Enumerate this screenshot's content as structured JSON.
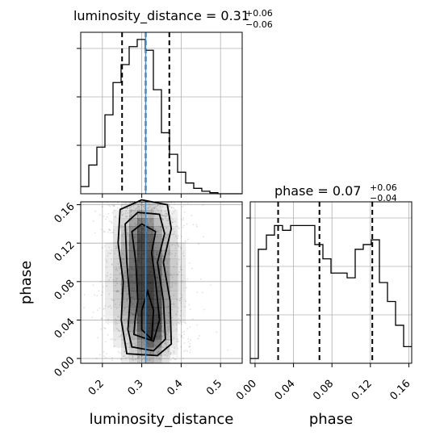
{
  "figure": {
    "colors": {
      "grid": "#b0b0b0",
      "truth": "#4c8cbf",
      "hist": "#000000",
      "density_dark": "#000000"
    }
  },
  "chart_data": [
    {
      "type": "histogram",
      "panel": "luminosity_distance-marginal",
      "title_main": "luminosity_distance = 0.31",
      "title_plus": "+0.06",
      "title_minus": "−0.06",
      "xlim": [
        0.145,
        0.555
      ],
      "x_ticks": [
        0.2,
        0.3,
        0.4,
        0.5
      ],
      "bin_edges": [
        0.145,
        0.1655,
        0.186,
        0.2065,
        0.227,
        0.2475,
        0.268,
        0.2885,
        0.309,
        0.3295,
        0.35,
        0.3705,
        0.391,
        0.4115,
        0.432,
        0.4525,
        0.473,
        0.4935,
        0.514,
        0.5345,
        0.555
      ],
      "counts": [
        2,
        8,
        13,
        22,
        31,
        36,
        41,
        43,
        40,
        29,
        17,
        11,
        6,
        3,
        1.5,
        0.7,
        0.3,
        0,
        0,
        0
      ],
      "ymax": 45,
      "quantiles": [
        0.25,
        0.31,
        0.37
      ],
      "truth": 0.31
    },
    {
      "type": "histogram",
      "panel": "phase-marginal",
      "title_main": "phase = 0.07",
      "title_plus": "+0.06",
      "title_minus": "−0.04",
      "xlim": [
        -0.005,
        0.163
      ],
      "x_ticks": [
        0.0,
        0.04,
        0.08,
        0.12,
        0.16
      ],
      "x_tick_labels": [
        "0.00",
        "0.04",
        "0.08",
        "0.12",
        "0.16"
      ],
      "bin_edges": [
        -0.005,
        0.0034,
        0.0118,
        0.0202,
        0.0286,
        0.037,
        0.0454,
        0.0538,
        0.0622,
        0.0706,
        0.079,
        0.0874,
        0.0958,
        0.1042,
        0.1126,
        0.121,
        0.1294,
        0.1378,
        0.1462,
        0.1546,
        0.163
      ],
      "counts": [
        1,
        24,
        27,
        29,
        28,
        29,
        29,
        29,
        25,
        22,
        19,
        19,
        18,
        24,
        25,
        26,
        17,
        13,
        8,
        3.5
      ],
      "ymax": 34,
      "quantiles": [
        0.024,
        0.067,
        0.122
      ]
    },
    {
      "type": "scatter-density",
      "panel": "joint",
      "xlim": [
        0.145,
        0.555
      ],
      "ylim": [
        -0.005,
        0.163
      ],
      "x_ticks": [
        0.2,
        0.3,
        0.4,
        0.5
      ],
      "y_ticks": [
        0.0,
        0.04,
        0.08,
        0.12,
        0.16
      ],
      "y_tick_labels": [
        "0.00",
        "0.04",
        "0.08",
        "0.12",
        "0.16"
      ],
      "xlabel": "luminosity_distance",
      "ylabel": "phase",
      "truth_x": 0.31,
      "density_blobs": [
        {
          "cx": 0.31,
          "cy": 0.08,
          "sx": 0.045,
          "sy": 0.045,
          "w": 1.0
        },
        {
          "cx": 0.325,
          "cy": 0.03,
          "sx": 0.02,
          "sy": 0.02,
          "w": 0.6
        },
        {
          "cx": 0.3,
          "cy": 0.13,
          "sx": 0.02,
          "sy": 0.015,
          "w": 0.4
        }
      ],
      "contours": [
        [
          [
            0.262,
            0.005
          ],
          [
            0.34,
            0.003
          ],
          [
            0.375,
            0.015
          ],
          [
            0.372,
            0.06
          ],
          [
            0.355,
            0.1
          ],
          [
            0.375,
            0.135
          ],
          [
            0.365,
            0.16
          ],
          [
            0.3,
            0.165
          ],
          [
            0.245,
            0.155
          ],
          [
            0.24,
            0.12
          ],
          [
            0.253,
            0.08
          ],
          [
            0.248,
            0.04
          ],
          [
            0.262,
            0.005
          ]
        ],
        [
          [
            0.275,
            0.012
          ],
          [
            0.33,
            0.008
          ],
          [
            0.36,
            0.02
          ],
          [
            0.355,
            0.06
          ],
          [
            0.34,
            0.1
          ],
          [
            0.358,
            0.13
          ],
          [
            0.345,
            0.15
          ],
          [
            0.29,
            0.152
          ],
          [
            0.258,
            0.14
          ],
          [
            0.262,
            0.1
          ],
          [
            0.27,
            0.06
          ],
          [
            0.265,
            0.03
          ],
          [
            0.275,
            0.012
          ]
        ],
        [
          [
            0.28,
            0.025
          ],
          [
            0.33,
            0.018
          ],
          [
            0.345,
            0.04
          ],
          [
            0.335,
            0.08
          ],
          [
            0.325,
            0.11
          ],
          [
            0.335,
            0.132
          ],
          [
            0.3,
            0.14
          ],
          [
            0.275,
            0.132
          ],
          [
            0.285,
            0.1
          ],
          [
            0.29,
            0.06
          ],
          [
            0.283,
            0.04
          ],
          [
            0.28,
            0.025
          ]
        ],
        [
          [
            0.3,
            0.03
          ],
          [
            0.325,
            0.02
          ],
          [
            0.33,
            0.05
          ],
          [
            0.315,
            0.07
          ],
          [
            0.3,
            0.05
          ],
          [
            0.3,
            0.03
          ]
        ]
      ]
    }
  ]
}
